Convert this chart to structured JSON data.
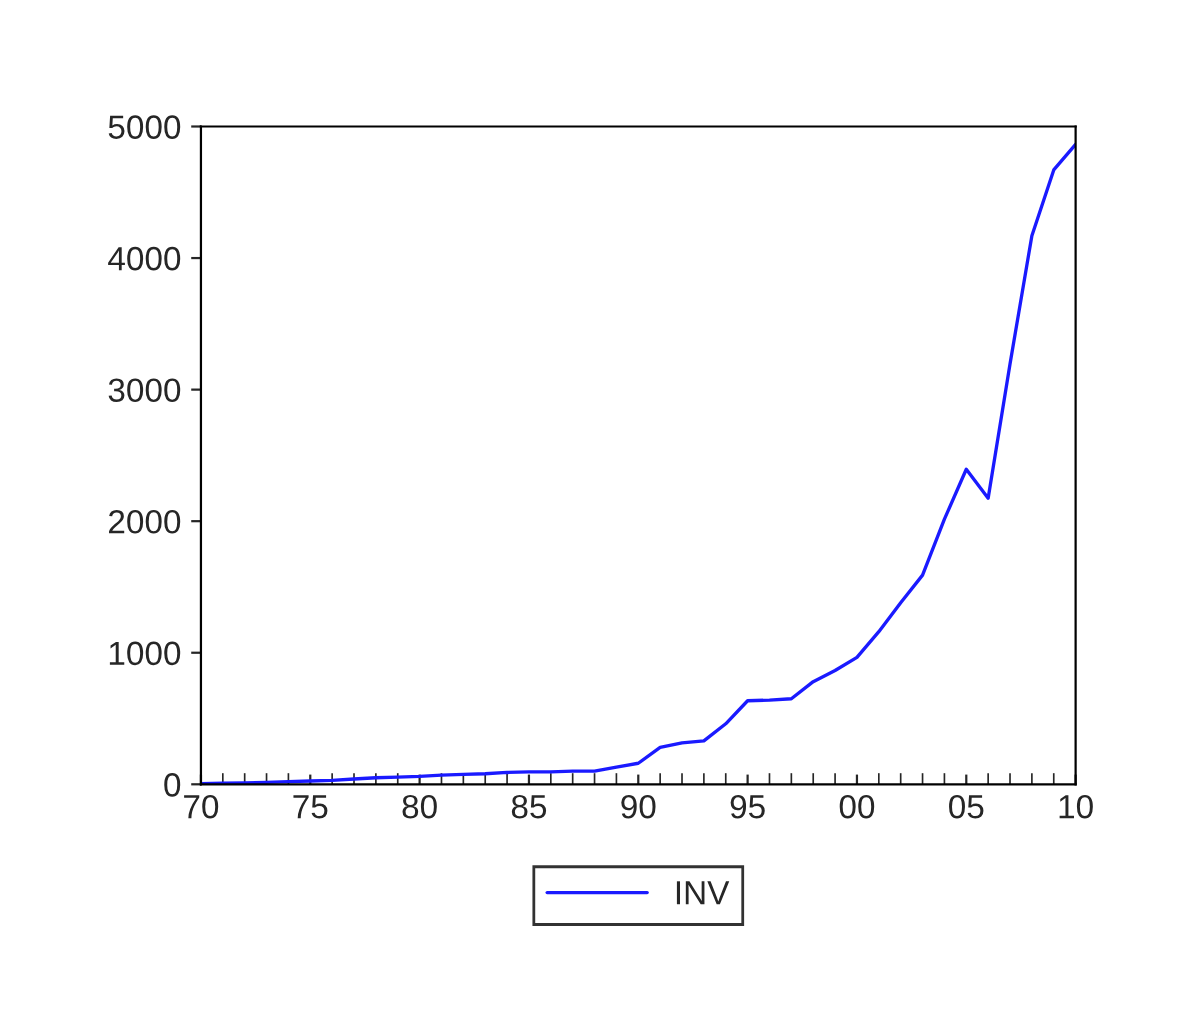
{
  "chart_data": {
    "type": "line",
    "x": [
      1970,
      1971,
      1972,
      1973,
      1974,
      1975,
      1976,
      1977,
      1978,
      1979,
      1980,
      1981,
      1982,
      1983,
      1984,
      1985,
      1986,
      1987,
      1988,
      1989,
      1990,
      1991,
      1992,
      1993,
      1994,
      1995,
      1996,
      1997,
      1998,
      1999,
      2000,
      2001,
      2002,
      2003,
      2004,
      2005,
      2006,
      2007,
      2008,
      2009,
      2010
    ],
    "series": [
      {
        "name": "INV",
        "color": "#1a1aff",
        "values": [
          5,
          8,
          10,
          15,
          20,
          25,
          30,
          40,
          50,
          55,
          60,
          70,
          75,
          80,
          90,
          95,
          95,
          100,
          100,
          130,
          160,
          280,
          315,
          330,
          460,
          635,
          640,
          650,
          780,
          865,
          965,
          1160,
          1380,
          1590,
          2015,
          2395,
          2175,
          3195,
          4170,
          4670,
          4865
        ]
      }
    ],
    "xlim": [
      1970,
      2010
    ],
    "ylim": [
      0,
      5000
    ],
    "xticks": [
      {
        "value": 1970,
        "label": "70"
      },
      {
        "value": 1975,
        "label": "75"
      },
      {
        "value": 1980,
        "label": "80"
      },
      {
        "value": 1985,
        "label": "85"
      },
      {
        "value": 1990,
        "label": "90"
      },
      {
        "value": 1995,
        "label": "95"
      },
      {
        "value": 2000,
        "label": "00"
      },
      {
        "value": 2005,
        "label": "05"
      },
      {
        "value": 2010,
        "label": "10"
      }
    ],
    "yticks": [
      0,
      1000,
      2000,
      3000,
      4000,
      5000
    ],
    "legend": "bottom",
    "grid": false,
    "marker": "none",
    "line_style": "solid"
  }
}
